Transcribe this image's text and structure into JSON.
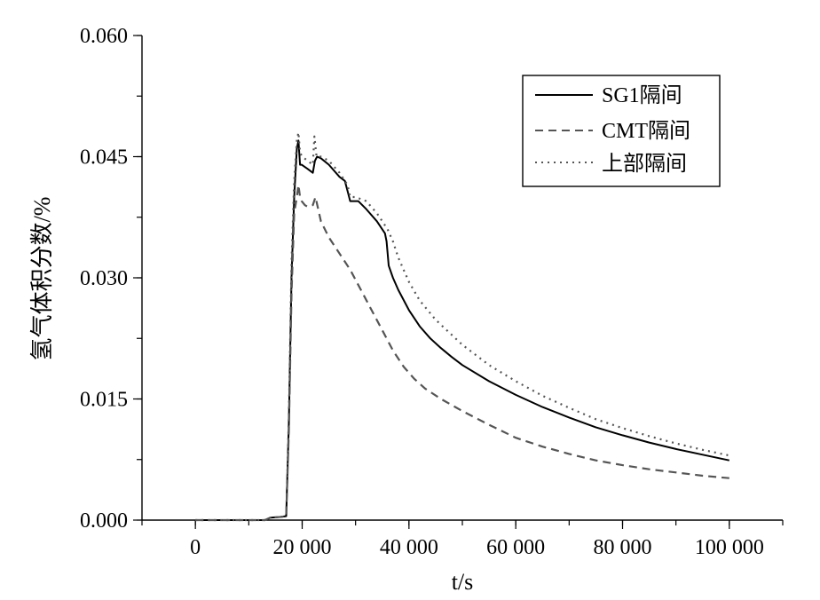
{
  "chart_data": {
    "type": "line",
    "xlabel": "t/s",
    "ylabel": "氢气体积分数/%",
    "xlim": [
      -10000,
      110000
    ],
    "ylim": [
      0,
      0.06
    ],
    "x_ticks": [
      0,
      20000,
      40000,
      60000,
      80000,
      100000
    ],
    "x_tick_labels": [
      "0",
      "20 000",
      "40 000",
      "60 000",
      "80 000",
      "100 000"
    ],
    "y_ticks": [
      0,
      0.015,
      0.03,
      0.045,
      0.06
    ],
    "y_tick_labels": [
      "0.000",
      "0.015",
      "0.030",
      "0.045",
      "0.060"
    ],
    "legend_position": "top-right",
    "grid": false,
    "series": [
      {
        "name": "SG1隔间",
        "style": "solid",
        "color": "#000000",
        "x": [
          0,
          13000,
          14000,
          16000,
          17000,
          17500,
          18000,
          18500,
          19000,
          19300,
          19600,
          19900,
          21000,
          22000,
          22400,
          22800,
          23500,
          25000,
          27000,
          28000,
          28600,
          29000,
          29500,
          30500,
          32000,
          34000,
          35500,
          35800,
          36200,
          37000,
          38000,
          40000,
          42000,
          44000,
          46000,
          48000,
          50000,
          55000,
          60000,
          65000,
          70000,
          75000,
          80000,
          85000,
          90000,
          95000,
          100000
        ],
        "y": [
          0,
          0,
          0.0003,
          0.0004,
          0.0005,
          0.012,
          0.03,
          0.04,
          0.046,
          0.047,
          0.044,
          0.044,
          0.0435,
          0.043,
          0.0445,
          0.045,
          0.0448,
          0.044,
          0.0425,
          0.042,
          0.0405,
          0.0395,
          0.0395,
          0.0395,
          0.0385,
          0.037,
          0.0355,
          0.0345,
          0.0315,
          0.03,
          0.0285,
          0.026,
          0.024,
          0.0225,
          0.0213,
          0.0202,
          0.0192,
          0.0172,
          0.0155,
          0.014,
          0.0127,
          0.0115,
          0.0105,
          0.0096,
          0.0088,
          0.0081,
          0.0074
        ]
      },
      {
        "name": "CMT隔间",
        "style": "dashed",
        "color": "#555555",
        "x": [
          0,
          13000,
          14000,
          16000,
          17000,
          17500,
          18000,
          18500,
          19000,
          19300,
          19600,
          19900,
          20500,
          21000,
          22000,
          22500,
          23500,
          25000,
          27000,
          29000,
          31000,
          33000,
          35000,
          37000,
          39000,
          41000,
          43000,
          46000,
          50000,
          55000,
          60000,
          65000,
          70000,
          75000,
          80000,
          85000,
          90000,
          95000,
          100000
        ],
        "y": [
          0,
          0,
          0.0003,
          0.0004,
          0.0005,
          0.011,
          0.028,
          0.038,
          0.04,
          0.0415,
          0.04,
          0.0395,
          0.039,
          0.0388,
          0.039,
          0.04,
          0.037,
          0.035,
          0.033,
          0.031,
          0.0285,
          0.026,
          0.0235,
          0.021,
          0.019,
          0.0175,
          0.0163,
          0.015,
          0.0135,
          0.0118,
          0.0102,
          0.0091,
          0.0082,
          0.0074,
          0.0068,
          0.0063,
          0.0059,
          0.0055,
          0.0052
        ]
      },
      {
        "name": "上部隔间",
        "style": "dotted",
        "color": "#555555",
        "x": [
          0,
          13000,
          14000,
          16000,
          17000,
          17500,
          18000,
          18500,
          19000,
          19300,
          19600,
          20000,
          21000,
          22000,
          22300,
          22700,
          23500,
          25000,
          27000,
          28500,
          29000,
          30000,
          32000,
          34000,
          36000,
          37000,
          38000,
          40000,
          42000,
          45000,
          50000,
          55000,
          60000,
          65000,
          70000,
          75000,
          80000,
          85000,
          90000,
          95000,
          100000
        ],
        "y": [
          0,
          0,
          0.0003,
          0.0004,
          0.0005,
          0.013,
          0.032,
          0.042,
          0.047,
          0.048,
          0.0455,
          0.045,
          0.0445,
          0.044,
          0.0475,
          0.045,
          0.045,
          0.0445,
          0.043,
          0.0415,
          0.04,
          0.04,
          0.0395,
          0.038,
          0.036,
          0.0345,
          0.0325,
          0.0295,
          0.0272,
          0.0248,
          0.0217,
          0.0192,
          0.0172,
          0.0154,
          0.0139,
          0.0125,
          0.0114,
          0.0104,
          0.0095,
          0.0087,
          0.008
        ]
      }
    ]
  }
}
